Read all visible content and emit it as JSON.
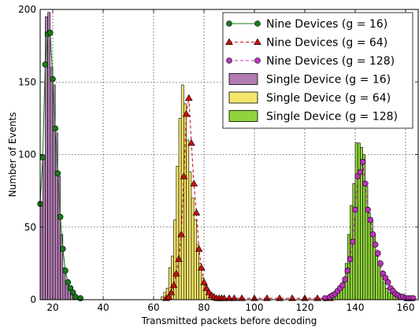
{
  "chart_data": {
    "type": "bar",
    "xlabel": "Transmitted packets before decoding",
    "ylabel": "Number of Events",
    "xlim": [
      15,
      165
    ],
    "ylim": [
      0,
      200
    ],
    "xticks": [
      20,
      40,
      60,
      80,
      100,
      120,
      140,
      160
    ],
    "yticks": [
      0,
      50,
      100,
      150,
      200
    ],
    "grid": true,
    "legend_position": "top-right",
    "histograms": [
      {
        "name": "Single Device (g = 16)",
        "color": "#b27cb2",
        "bin_width": 1,
        "start": 15,
        "values": [
          65,
          98,
          195,
          198,
          160,
          148,
          115,
          85,
          45,
          22,
          12,
          8,
          5,
          3,
          2,
          1
        ]
      },
      {
        "name": "Single Device (g = 64)",
        "color": "#f5e66b",
        "bin_width": 1,
        "start": 63,
        "values": [
          2,
          5,
          8,
          22,
          30,
          55,
          92,
          125,
          148,
          135,
          110,
          88,
          70,
          55,
          38,
          25,
          15,
          10,
          6,
          4,
          3,
          2,
          1,
          1,
          1
        ]
      },
      {
        "name": "Single Device (g = 128)",
        "color": "#8fd43b",
        "bin_width": 1,
        "start": 127,
        "values": [
          1,
          2,
          3,
          4,
          5,
          6,
          7,
          10,
          15,
          25,
          45,
          65,
          80,
          108,
          108,
          105,
          100,
          78,
          60,
          55,
          45,
          30,
          25,
          18,
          12,
          8,
          5,
          4,
          3,
          2,
          1
        ]
      }
    ],
    "series": [
      {
        "name": "Nine Devices (g = 16)",
        "color": "#1a7a1a",
        "marker": "circle",
        "line": "solid",
        "x": [
          15,
          16,
          17,
          18,
          19,
          20,
          21,
          22,
          23,
          24,
          25,
          26,
          27,
          28,
          29,
          31
        ],
        "y": [
          66,
          98,
          162,
          183,
          184,
          152,
          118,
          87,
          57,
          35,
          20,
          12,
          8,
          5,
          2,
          1
        ]
      },
      {
        "name": "Nine Devices (g = 64)",
        "color": "#cc1111",
        "marker": "triangle",
        "line": "dashed",
        "x": [
          65,
          66,
          67,
          68,
          69,
          70,
          71,
          72,
          73,
          74,
          75,
          76,
          77,
          78,
          79,
          80,
          81,
          82,
          83,
          84,
          85,
          86,
          87,
          88,
          90,
          92,
          95,
          100,
          105,
          110,
          115,
          120,
          125,
          130
        ],
        "y": [
          1,
          2,
          5,
          10,
          18,
          28,
          45,
          85,
          128,
          139,
          108,
          80,
          60,
          35,
          22,
          12,
          8,
          5,
          3,
          2,
          1,
          1,
          1,
          1,
          1,
          1,
          1,
          1,
          1,
          1,
          1,
          1,
          1,
          1
        ]
      },
      {
        "name": "Nine Devices (g = 128)",
        "color": "#bb33bb",
        "marker": "circle",
        "line": "dashed",
        "x": [
          128,
          130,
          131,
          132,
          133,
          134,
          135,
          136,
          137,
          138,
          139,
          140,
          141,
          142,
          143,
          144,
          145,
          146,
          147,
          148,
          149,
          150,
          151,
          152,
          153,
          154,
          155,
          156,
          157,
          158,
          159,
          160,
          161,
          162,
          163
        ],
        "y": [
          1,
          2,
          3,
          4,
          6,
          8,
          10,
          14,
          20,
          28,
          40,
          62,
          85,
          88,
          95,
          80,
          62,
          55,
          45,
          38,
          32,
          25,
          18,
          15,
          12,
          8,
          6,
          4,
          3,
          2,
          2,
          1,
          1,
          1,
          1
        ]
      }
    ]
  }
}
